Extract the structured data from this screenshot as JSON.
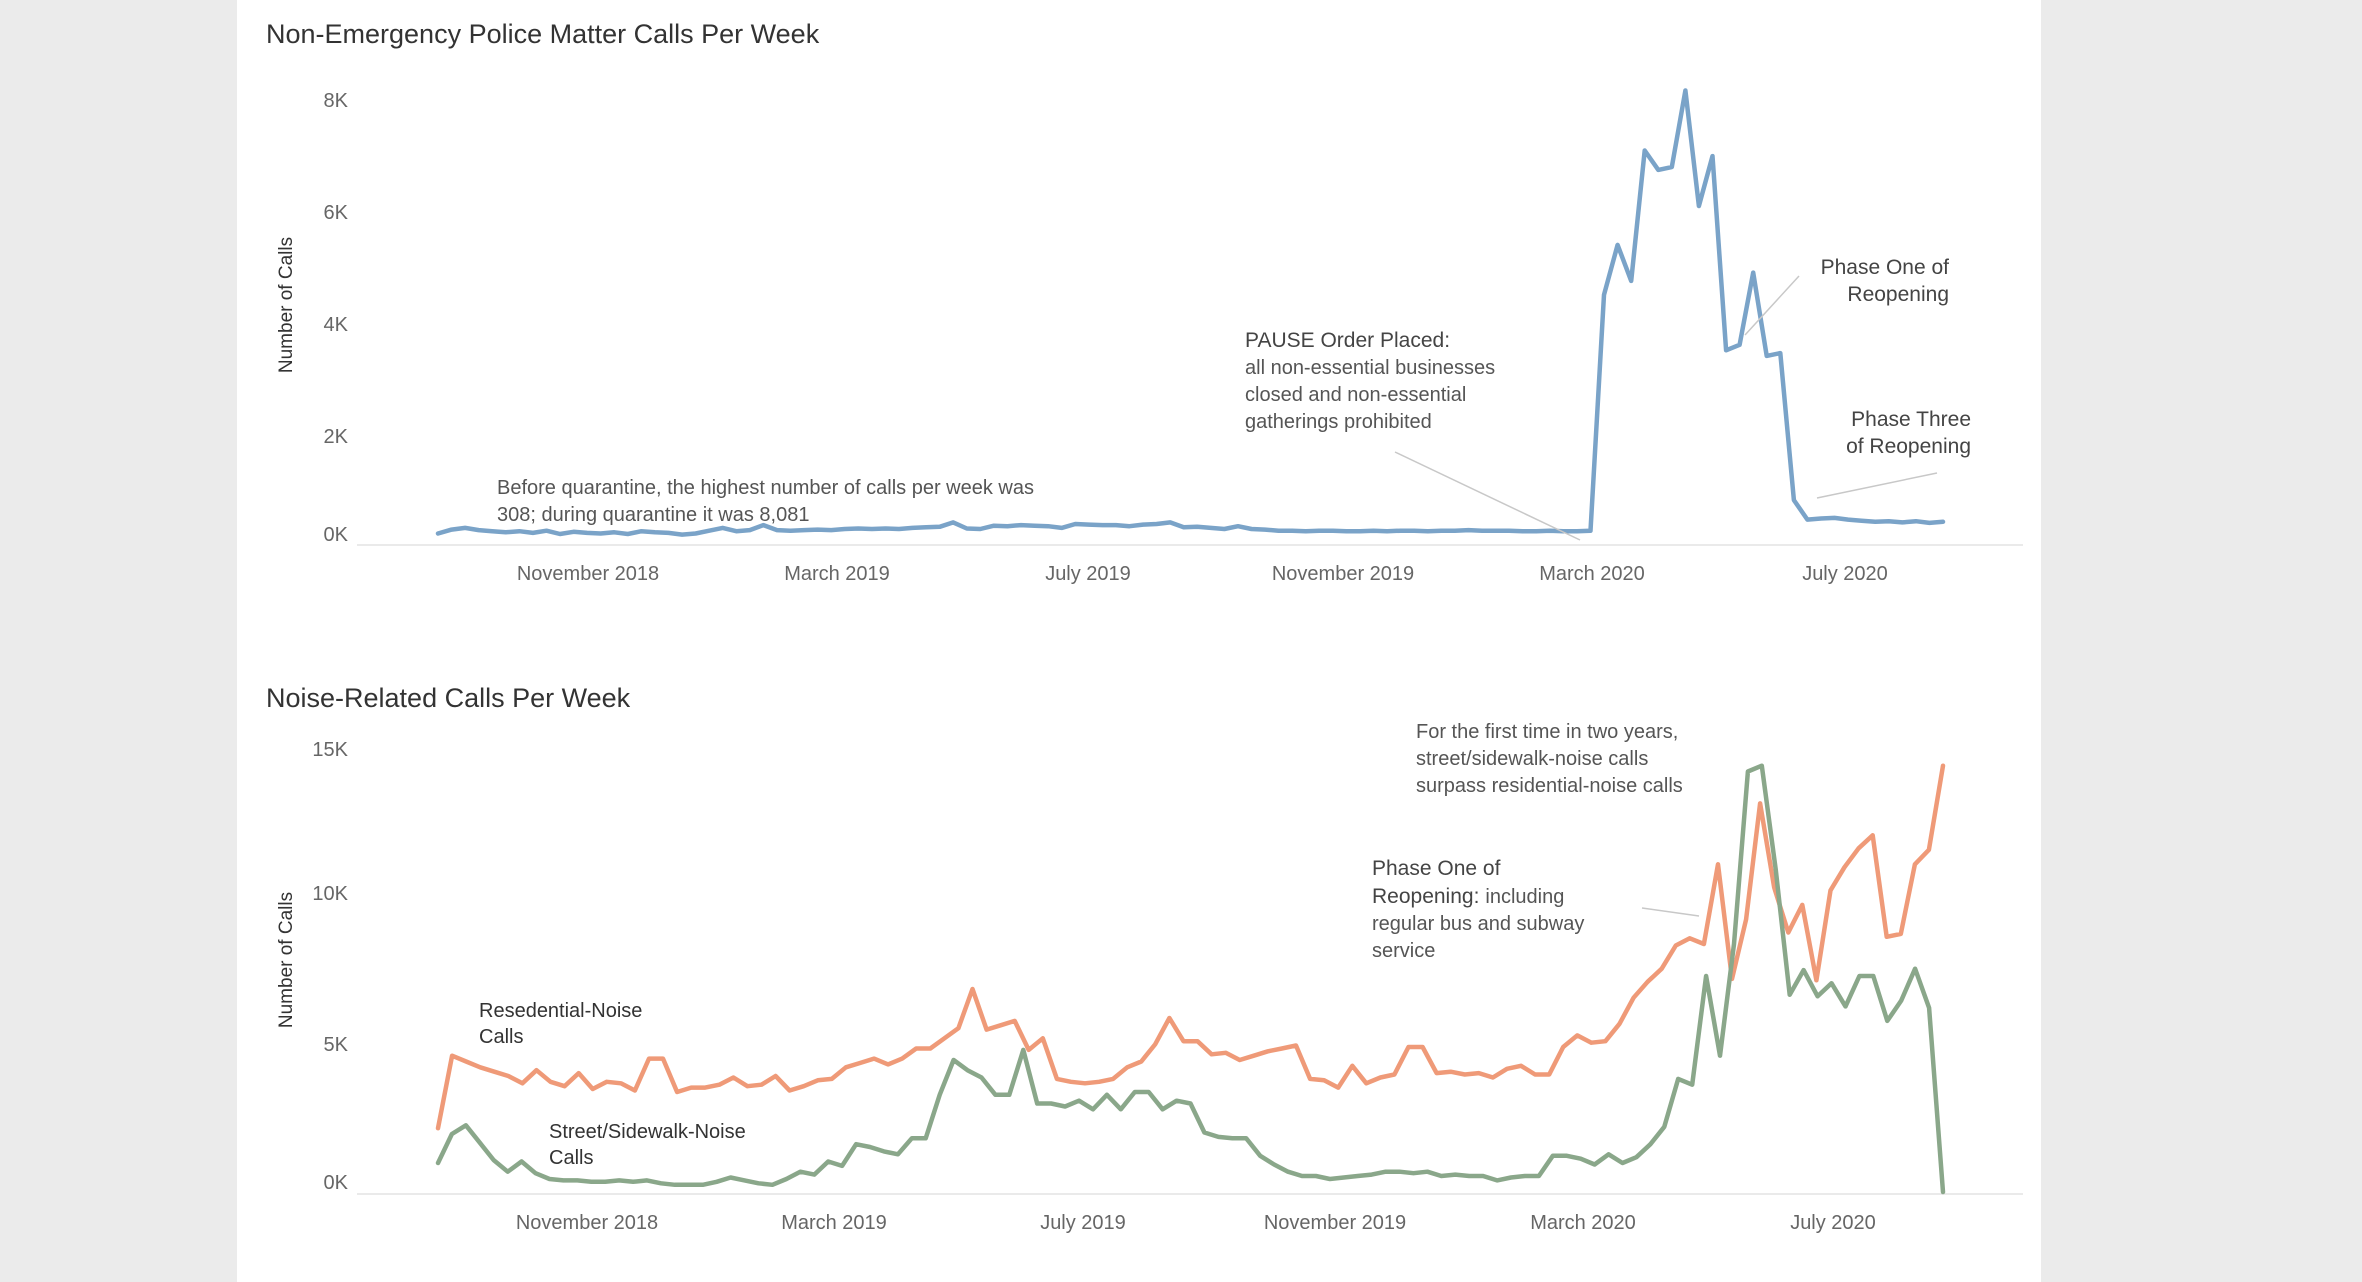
{
  "colors": {
    "police": "#7aa3c8",
    "residential": "#ef9a78",
    "street": "#8aa78a"
  },
  "chart_data": [
    {
      "type": "line",
      "title": "Non-Emergency Police Matter Calls Per Week",
      "xlabel": "",
      "ylabel": "Number of Calls",
      "ylim": [
        0,
        8500
      ],
      "yticks": [
        0,
        2000,
        4000,
        6000,
        8000
      ],
      "ytick_labels": [
        "0K",
        "2K",
        "4K",
        "6K",
        "8K"
      ],
      "xtick_labels": [
        "November 2018",
        "March 2019",
        "July 2019",
        "November 2019",
        "March 2020",
        "July 2020"
      ],
      "xtick_weeks": [
        13.5,
        31.5,
        49.5,
        67.5,
        85.5,
        103.5
      ],
      "series": [
        {
          "name": "Non-Emergency Police Matter Calls",
          "values": [
            100,
            170,
            200,
            160,
            140,
            120,
            140,
            110,
            150,
            90,
            130,
            110,
            100,
            120,
            90,
            140,
            120,
            110,
            80,
            100,
            150,
            200,
            140,
            160,
            250,
            160,
            150,
            160,
            170,
            160,
            180,
            190,
            180,
            190,
            180,
            200,
            210,
            220,
            300,
            190,
            180,
            240,
            230,
            250,
            240,
            230,
            200,
            270,
            260,
            250,
            250,
            230,
            260,
            270,
            300,
            210,
            220,
            200,
            180,
            230,
            180,
            170,
            150,
            150,
            140,
            150,
            150,
            140,
            140,
            150,
            140,
            150,
            150,
            140,
            150,
            150,
            160,
            150,
            150,
            150,
            140,
            140,
            150,
            140,
            140,
            150,
            4400,
            5300,
            4650,
            7000,
            6650,
            6700,
            8081,
            6000,
            6900,
            3400,
            3500,
            4800,
            3300,
            3350,
            700,
            350,
            370,
            380,
            350,
            330,
            310,
            320,
            300,
            320,
            290,
            310
          ]
        }
      ],
      "annotations": [
        {
          "lines": [
            "Before quarantine, the highest number of calls per week was",
            "308; during quarantine it was 8,081"
          ]
        },
        {
          "heading": "PAUSE Order Placed:",
          "lines": [
            "all non-essential businesses",
            "closed and non-essential",
            "gatherings prohibited"
          ]
        },
        {
          "heading": "Phase One of",
          "lines": [
            "Reopening"
          ]
        },
        {
          "heading": "Phase Three",
          "lines": [
            "of Reopening"
          ]
        }
      ]
    },
    {
      "type": "line",
      "title": "Noise-Related Calls Per Week",
      "xlabel": "",
      "ylabel": "Number of Calls",
      "ylim": [
        0,
        15500
      ],
      "yticks": [
        0,
        5000,
        10000,
        15000
      ],
      "ytick_labels": [
        "0K",
        "5K",
        "10K",
        "15K"
      ],
      "xtick_labels": [
        "November 2018",
        "March 2019",
        "July 2019",
        "November 2019",
        "March 2020",
        "July 2020"
      ],
      "xtick_weeks": [
        13.5,
        31.5,
        49.5,
        67.5,
        85.5,
        103.5
      ],
      "series": [
        {
          "name": "Resedential-Noise Calls",
          "values": [
            2200,
            4700,
            4500,
            4300,
            4150,
            4000,
            3750,
            4200,
            3800,
            3650,
            4100,
            3550,
            3800,
            3750,
            3500,
            4600,
            4600,
            3450,
            3600,
            3600,
            3700,
            3950,
            3650,
            3700,
            4000,
            3500,
            3650,
            3850,
            3900,
            4300,
            4450,
            4600,
            4400,
            4600,
            4950,
            4950,
            5300,
            5650,
            7000,
            5600,
            5750,
            5900,
            4900,
            5300,
            3900,
            3800,
            3750,
            3800,
            3900,
            4300,
            4500,
            5100,
            6000,
            5200,
            5200,
            4750,
            4800,
            4550,
            4700,
            4850,
            4950,
            5050,
            3900,
            3850,
            3600,
            4350,
            3750,
            3950,
            4050,
            5000,
            5000,
            4100,
            4150,
            4050,
            4100,
            3950,
            4250,
            4350,
            4050,
            4050,
            5000,
            5400,
            5150,
            5200,
            5800,
            6700,
            7250,
            7700,
            8500,
            8750,
            8550,
            11300,
            7350,
            9400,
            13400,
            10500,
            8950,
            9900,
            7300,
            10400,
            11200,
            11850,
            12300,
            8800,
            8900,
            11300,
            11800,
            14700
          ]
        },
        {
          "name": "Street/Sidewalk-Noise Calls",
          "values": [
            1000,
            2000,
            2300,
            1700,
            1100,
            700,
            1050,
            650,
            450,
            400,
            400,
            350,
            350,
            400,
            350,
            400,
            300,
            250,
            250,
            250,
            350,
            500,
            400,
            300,
            250,
            450,
            700,
            600,
            1050,
            900,
            1650,
            1550,
            1400,
            1300,
            1850,
            1850,
            3350,
            4550,
            4200,
            3950,
            3350,
            3350,
            4900,
            3050,
            3050,
            2950,
            3150,
            2850,
            3350,
            2850,
            3450,
            3450,
            2850,
            3150,
            3050,
            2050,
            1900,
            1850,
            1850,
            1250,
            950,
            700,
            550,
            550,
            450,
            500,
            550,
            600,
            700,
            700,
            650,
            700,
            550,
            600,
            550,
            550,
            400,
            500,
            550,
            550,
            1250,
            1250,
            1150,
            950,
            1300,
            1000,
            1200,
            1650,
            2250,
            3900,
            3700,
            7450,
            4700,
            8550,
            14500,
            14700,
            11100,
            6800,
            7650,
            6750,
            7200,
            6400,
            7450,
            7450,
            5900,
            6600,
            7700,
            6350,
            0
          ]
        }
      ],
      "annotations": [
        {
          "heading": "For the first time in two years,",
          "lines": [
            "street/sidewalk-noise calls",
            "surpass residential-noise calls"
          ]
        },
        {
          "heading_lines": [
            "Phase One of",
            "Reopening:"
          ],
          "heading_tail": "including",
          "lines": [
            "regular bus and subway",
            "service"
          ]
        },
        {
          "lines": [
            "Resedential-Noise",
            "Calls"
          ]
        },
        {
          "lines": [
            "Street/Sidewalk-Noise",
            "Calls"
          ]
        }
      ]
    }
  ]
}
